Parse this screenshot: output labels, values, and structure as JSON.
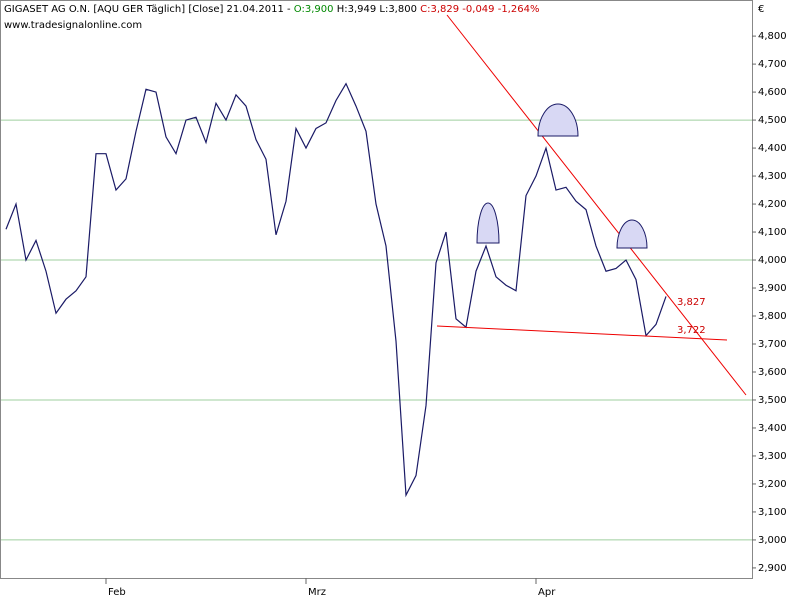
{
  "chart_data": {
    "type": "line",
    "title": "GIGASET AG O.N. [AQU GER  Täglich] [Close] 21.04.2011 -",
    "quote_open": "O:3,900",
    "quote_high_low": "H:3,949 L:3,800",
    "quote_close": "C:3,829 -0,049 -1,264%",
    "watermark": "www.tradesignalonline.com",
    "currency": "€",
    "annotations": [
      "3,827",
      "3,722"
    ],
    "categories": [
      null,
      null,
      null,
      null,
      null,
      null,
      null,
      null,
      null,
      null,
      "Feb",
      null,
      null,
      null,
      null,
      null,
      null,
      null,
      null,
      null,
      null,
      null,
      null,
      null,
      null,
      null,
      null,
      null,
      null,
      null,
      "Mrz",
      null,
      null,
      null,
      null,
      null,
      null,
      null,
      null,
      null,
      null,
      null,
      null,
      null,
      null,
      null,
      null,
      null,
      null,
      null,
      null,
      null,
      null,
      "Apr",
      null,
      null,
      null,
      null,
      null,
      null,
      null,
      null,
      null,
      null,
      null,
      null,
      null
    ],
    "series": [
      {
        "name": "GIGASET AG O.N.",
        "color": "#1a1a66",
        "values": [
          4.11,
          4.2,
          4.0,
          4.07,
          3.96,
          3.81,
          3.86,
          3.89,
          3.94,
          4.38,
          4.38,
          4.25,
          4.29,
          4.46,
          4.61,
          4.6,
          4.44,
          4.38,
          4.5,
          4.51,
          4.42,
          4.56,
          4.5,
          4.59,
          4.55,
          4.43,
          4.36,
          4.09,
          4.21,
          4.47,
          4.4,
          4.47,
          4.49,
          4.57,
          4.63,
          4.55,
          4.46,
          4.2,
          4.05,
          3.71,
          3.16,
          3.23,
          3.48,
          3.99,
          4.1,
          3.79,
          3.76,
          3.96,
          4.05,
          3.94,
          3.91,
          3.89,
          4.23,
          4.3,
          4.4,
          4.25,
          4.26,
          4.21,
          4.18,
          4.05,
          3.96,
          3.97,
          4.0,
          3.93,
          3.73,
          3.77,
          3.87
        ]
      }
    ],
    "ylim": [
      2.864,
      4.929
    ],
    "yticks": [
      {
        "value": 2.9,
        "label": "2,900"
      },
      {
        "value": 3.0,
        "label": "3,000"
      },
      {
        "value": 3.1,
        "label": "3,100"
      },
      {
        "value": 3.2,
        "label": "3,200"
      },
      {
        "value": 3.3,
        "label": "3,300"
      },
      {
        "value": 3.4,
        "label": "3,400"
      },
      {
        "value": 3.5,
        "label": "3,500"
      },
      {
        "value": 3.6,
        "label": "3,600"
      },
      {
        "value": 3.7,
        "label": "3,700"
      },
      {
        "value": 3.8,
        "label": "3,800"
      },
      {
        "value": 3.9,
        "label": "3,900"
      },
      {
        "value": 4.0,
        "label": "4,000"
      },
      {
        "value": 4.1,
        "label": "4,100"
      },
      {
        "value": 4.2,
        "label": "4,200"
      },
      {
        "value": 4.3,
        "label": "4,300"
      },
      {
        "value": 4.4,
        "label": "4,400"
      },
      {
        "value": 4.5,
        "label": "4,500"
      },
      {
        "value": 4.6,
        "label": "4,600"
      },
      {
        "value": 4.7,
        "label": "4,700"
      },
      {
        "value": 4.8,
        "label": "4,800"
      }
    ],
    "gridlines": [
      3.0,
      3.5,
      4.0,
      4.5
    ],
    "grid_color": "#9fcf9f"
  }
}
